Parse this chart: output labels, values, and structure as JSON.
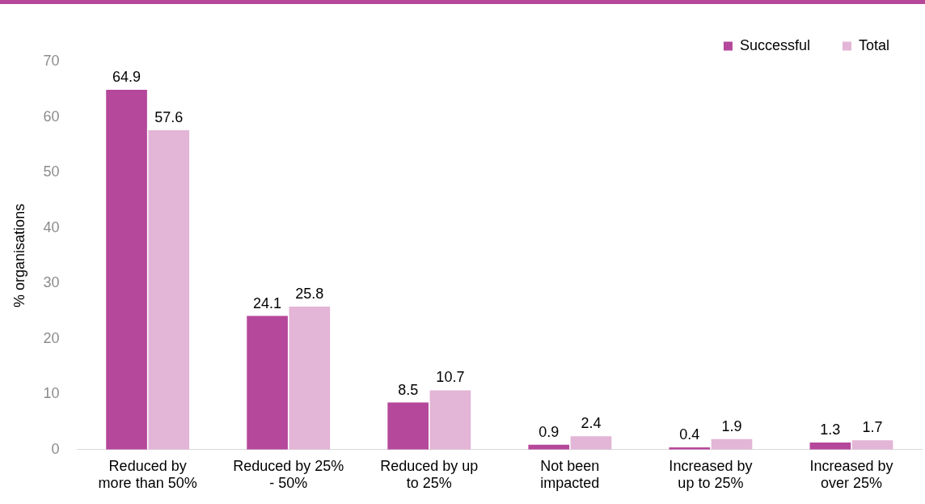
{
  "chart_data": {
    "type": "bar",
    "ylabel": "% organisations",
    "categories": [
      "Reduced by more than 50%",
      "Reduced by 25% - 50%",
      "Reduced by up to 25%",
      "Not been impacted",
      "Increased by up to 25%",
      "Increased by over 25%"
    ],
    "series": [
      {
        "name": "Successful",
        "color": "#b5489b",
        "values": [
          64.9,
          24.1,
          8.5,
          0.9,
          0.4,
          1.3
        ]
      },
      {
        "name": "Total",
        "color": "#e3b5d6",
        "values": [
          57.6,
          25.8,
          10.7,
          2.4,
          1.9,
          1.7
        ]
      }
    ],
    "ylim": [
      0,
      70
    ],
    "yticks": [
      0,
      10,
      20,
      30,
      40,
      50,
      60,
      70
    ],
    "grid": false,
    "legend": "top right",
    "data_labels": true
  }
}
